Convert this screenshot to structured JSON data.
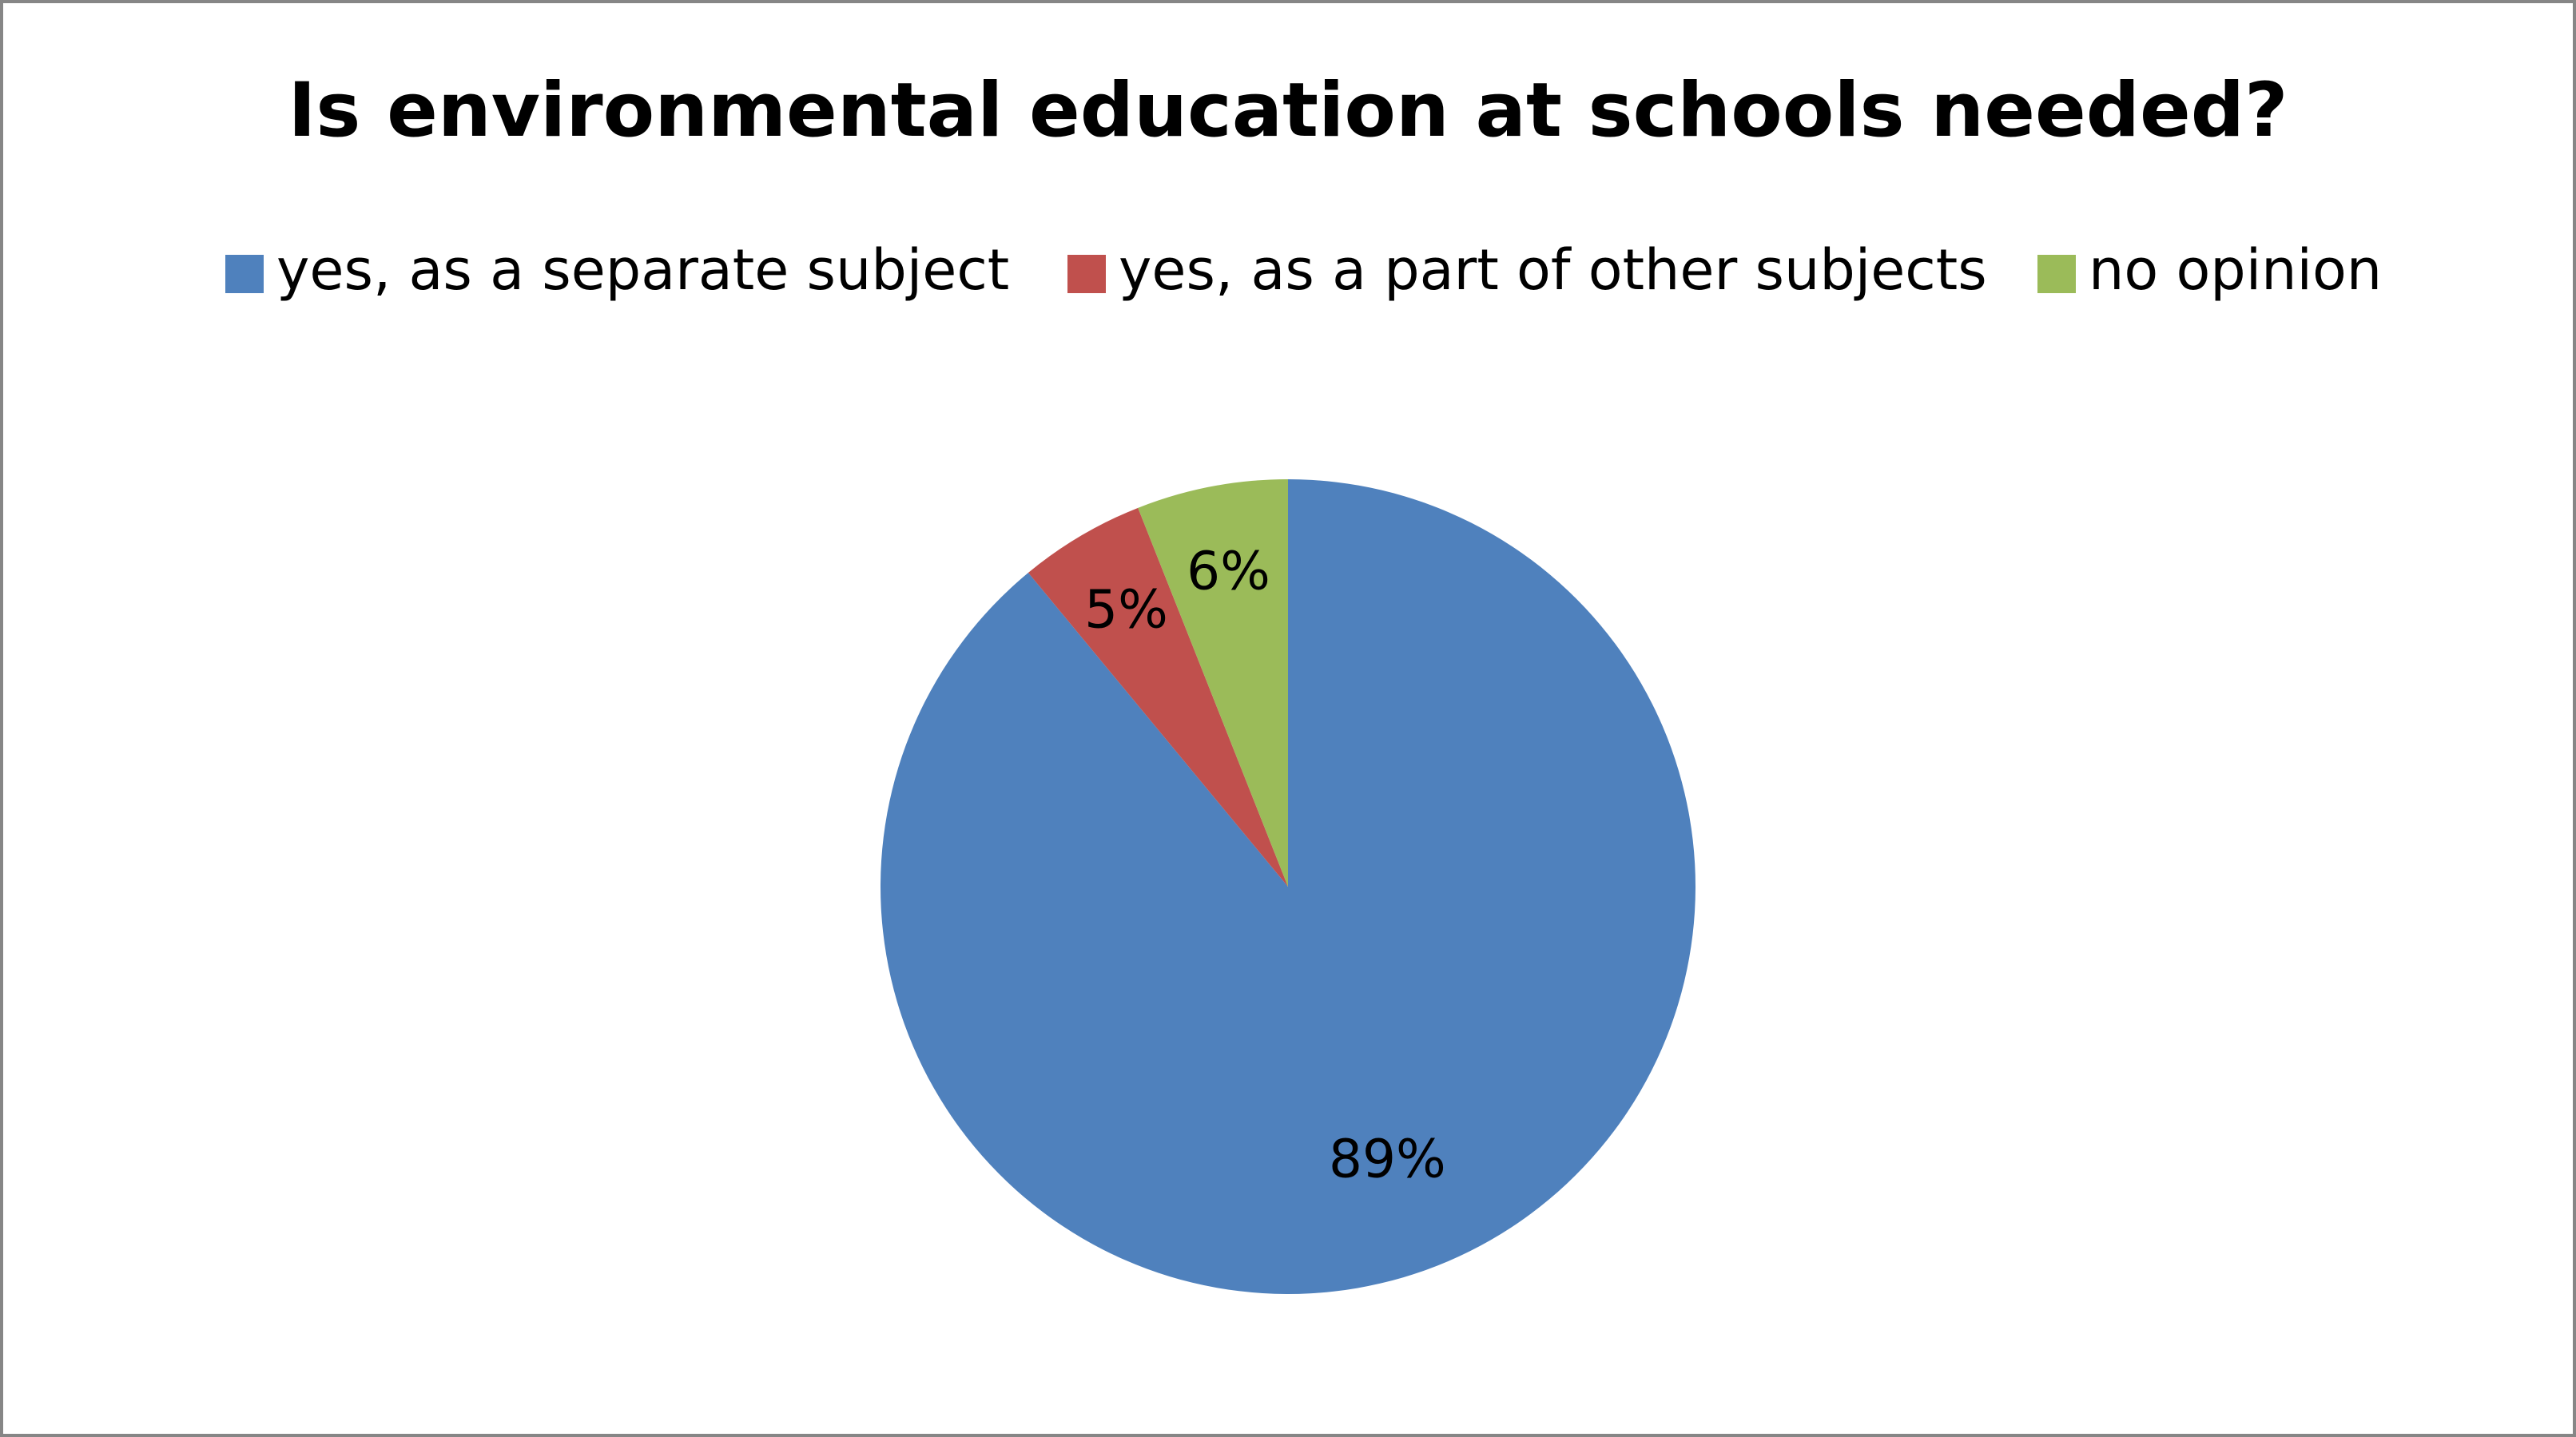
{
  "chart_data": {
    "type": "pie",
    "title": "Is environmental education at schools needed?",
    "categories": [
      "yes, as a separate subject",
      "yes, as a part of other subjects",
      "no opinion"
    ],
    "values": [
      89,
      5,
      6
    ],
    "value_labels": [
      "89%",
      "5%",
      "6%"
    ],
    "colors": [
      "#4f81bd",
      "#c0504d",
      "#9bbb59"
    ],
    "legend": "top"
  }
}
